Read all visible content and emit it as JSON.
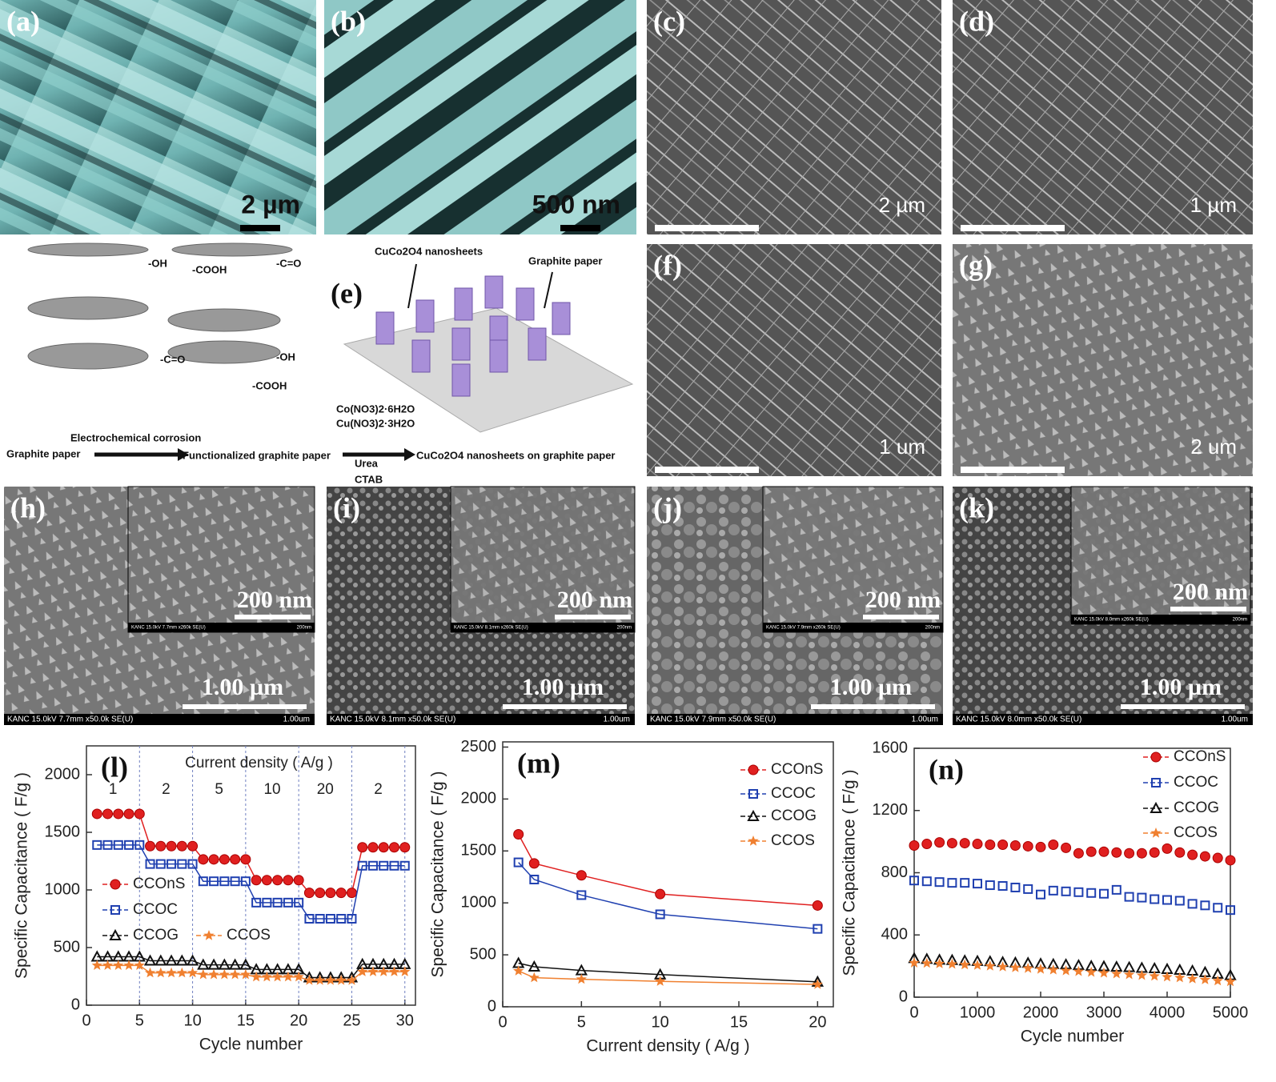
{
  "panels": [
    {
      "label": "(a)",
      "scale": "2 µm"
    },
    {
      "label": "(b)",
      "scale": "500 nm"
    },
    {
      "label": "(c)",
      "scale": "2 µm"
    },
    {
      "label": "(d)",
      "scale": "1 µm"
    },
    {
      "label": "(f)",
      "scale": "1 um"
    },
    {
      "label": "(g)",
      "scale": "2 um"
    },
    {
      "label": "(h)",
      "scale": "1.00 µm",
      "inset_scale": "200 nm",
      "info": "KANC 15.0kV 7.7mm x50.0k SE(U)",
      "info_scale": "1.00um",
      "inset_info": "KANC 15.0kV 7.7mm x260k SE(U)",
      "inset_info_scale": "200nm"
    },
    {
      "label": "(i)",
      "scale": "1.00 µm",
      "inset_scale": "200 nm",
      "info": "KANC 15.0kV 8.1mm x50.0k SE(U)",
      "info_scale": "1.00um",
      "inset_info": "KANC 15.0kV 8.1mm x260k SE(U)",
      "inset_info_scale": "200nm"
    },
    {
      "label": "(j)",
      "scale": "1.00 µm",
      "inset_scale": "200 nm",
      "info": "KANC 15.0kV 7.9mm x50.0k SE(U)",
      "info_scale": "1.00um",
      "inset_info": "KANC 15.0kV 7.9mm x260k SE(U)",
      "inset_info_scale": "200nm"
    },
    {
      "label": "(k)",
      "scale": "1.00 µm",
      "inset_scale": "200 nm",
      "info": "KANC 15.0kV 8.0mm x50.0k SE(U)",
      "info_scale": "1.00um",
      "inset_info": "KANC 15.0kV 8.0mm x260k SE(U)",
      "inset_info_scale": "200nm"
    }
  ],
  "schematic": {
    "label": "(e)",
    "groups_top": [
      "-OH",
      "-COOH",
      "-C=O"
    ],
    "groups_bottom": [
      "-C=O",
      "-OH",
      "-COOH"
    ],
    "nanosheets": "CuCo2O4 nanosheets",
    "substrate": "Graphite paper",
    "step1_start": "Graphite paper",
    "step1_arrow": "Electrochemical corrosion",
    "step1_end": "Functionalized graphite paper",
    "reagents": [
      "Co(NO3)2·6H2O",
      "Cu(NO3)2·3H2O",
      "Urea",
      "CTAB"
    ],
    "step2_end": "CuCo2O4 nanosheets on graphite paper"
  },
  "chart_data": [
    {
      "type": "line",
      "title": "(l)",
      "xlabel": "Cycle number",
      "ylabel": "Specific Capacitance ( F/g )",
      "annotation": "Current density ( A/g )",
      "density_labels": [
        1,
        2,
        5,
        10,
        20,
        2
      ],
      "dividers": [
        5,
        10,
        15,
        20,
        25,
        30
      ],
      "x": [
        1,
        2,
        3,
        4,
        5,
        6,
        7,
        8,
        9,
        10,
        11,
        12,
        13,
        14,
        15,
        16,
        17,
        18,
        19,
        20,
        21,
        22,
        23,
        24,
        25,
        26,
        27,
        28,
        29,
        30
      ],
      "xlim": [
        0,
        31
      ],
      "xticks": [
        0,
        5,
        10,
        15,
        20,
        25,
        30
      ],
      "ylim": [
        0,
        2250
      ],
      "yticks": [
        0,
        500,
        1000,
        1500,
        2000
      ],
      "series": [
        {
          "name": "CCOnS",
          "color": "#e02020",
          "marker": "circle",
          "values": [
            1660,
            1660,
            1660,
            1660,
            1660,
            1380,
            1380,
            1380,
            1380,
            1380,
            1265,
            1265,
            1265,
            1265,
            1265,
            1085,
            1085,
            1085,
            1085,
            1085,
            975,
            975,
            975,
            975,
            975,
            1370,
            1370,
            1370,
            1370,
            1370
          ]
        },
        {
          "name": "CCOC",
          "color": "#2040b0",
          "marker": "square",
          "values": [
            1390,
            1390,
            1390,
            1390,
            1390,
            1225,
            1225,
            1225,
            1225,
            1225,
            1075,
            1075,
            1075,
            1075,
            1075,
            890,
            890,
            890,
            890,
            890,
            750,
            750,
            750,
            750,
            750,
            1210,
            1210,
            1210,
            1210,
            1210
          ]
        },
        {
          "name": "CCOG",
          "color": "#111111",
          "marker": "triangle",
          "values": [
            420,
            420,
            420,
            420,
            420,
            385,
            385,
            385,
            385,
            385,
            350,
            350,
            350,
            350,
            350,
            310,
            310,
            310,
            310,
            310,
            240,
            240,
            240,
            240,
            240,
            355,
            355,
            355,
            355,
            355
          ]
        },
        {
          "name": "CCOS",
          "color": "#f08030",
          "marker": "star",
          "values": [
            345,
            345,
            345,
            345,
            345,
            280,
            280,
            280,
            280,
            280,
            265,
            265,
            265,
            265,
            265,
            245,
            245,
            245,
            245,
            245,
            215,
            215,
            215,
            215,
            215,
            290,
            290,
            290,
            290,
            290
          ]
        }
      ]
    },
    {
      "type": "line",
      "title": "(m)",
      "xlabel": "Current density ( A/g )",
      "ylabel": "Specific Capacitance ( F/g )",
      "x": [
        1,
        2,
        5,
        10,
        20
      ],
      "xlim": [
        0,
        21
      ],
      "xticks": [
        0,
        5,
        10,
        15,
        20
      ],
      "ylim": [
        0,
        2550
      ],
      "yticks": [
        0,
        500,
        1000,
        1500,
        2000,
        2500
      ],
      "series": [
        {
          "name": "CCOnS",
          "color": "#e02020",
          "marker": "circle",
          "values": [
            1660,
            1380,
            1265,
            1085,
            975
          ]
        },
        {
          "name": "CCOC",
          "color": "#2040b0",
          "marker": "square",
          "values": [
            1390,
            1225,
            1075,
            890,
            750
          ]
        },
        {
          "name": "CCOG",
          "color": "#111111",
          "marker": "triangle",
          "values": [
            420,
            385,
            350,
            310,
            240
          ]
        },
        {
          "name": "CCOS",
          "color": "#f08030",
          "marker": "star",
          "values": [
            345,
            280,
            265,
            245,
            215
          ]
        }
      ]
    },
    {
      "type": "scatter",
      "title": "(n)",
      "xlabel": "Cycle number",
      "ylabel": "Specific Capacitance ( F/g )",
      "x": [
        0,
        200,
        400,
        600,
        800,
        1000,
        1200,
        1400,
        1600,
        1800,
        2000,
        2200,
        2400,
        2600,
        2800,
        3000,
        3200,
        3400,
        3600,
        3800,
        4000,
        4200,
        4400,
        4600,
        4800,
        5000
      ],
      "xlim": [
        0,
        5000
      ],
      "xticks": [
        0,
        1000,
        2000,
        3000,
        4000,
        5000
      ],
      "ylim": [
        0,
        1600
      ],
      "yticks": [
        0,
        400,
        800,
        1200,
        1600
      ],
      "series": [
        {
          "name": "CCOnS",
          "color": "#e02020",
          "marker": "circle",
          "values": [
            975,
            985,
            995,
            990,
            990,
            985,
            980,
            980,
            975,
            970,
            965,
            980,
            960,
            925,
            935,
            935,
            930,
            925,
            925,
            930,
            955,
            930,
            915,
            905,
            895,
            880
          ]
        },
        {
          "name": "CCOC",
          "color": "#2040b0",
          "marker": "square",
          "values": [
            750,
            745,
            740,
            735,
            735,
            730,
            720,
            715,
            705,
            695,
            660,
            685,
            680,
            675,
            670,
            665,
            690,
            645,
            640,
            630,
            625,
            620,
            600,
            590,
            575,
            560
          ]
        },
        {
          "name": "CCOG",
          "color": "#111111",
          "marker": "triangle",
          "values": [
            250,
            245,
            240,
            238,
            235,
            232,
            230,
            225,
            222,
            220,
            215,
            212,
            210,
            205,
            200,
            198,
            195,
            192,
            188,
            185,
            180,
            175,
            170,
            160,
            150,
            140
          ]
        },
        {
          "name": "CCOS",
          "color": "#f08030",
          "marker": "star",
          "values": [
            220,
            218,
            215,
            212,
            208,
            205,
            200,
            195,
            190,
            185,
            180,
            175,
            170,
            165,
            160,
            155,
            150,
            145,
            140,
            135,
            130,
            125,
            118,
            112,
            105,
            100
          ]
        }
      ]
    }
  ]
}
